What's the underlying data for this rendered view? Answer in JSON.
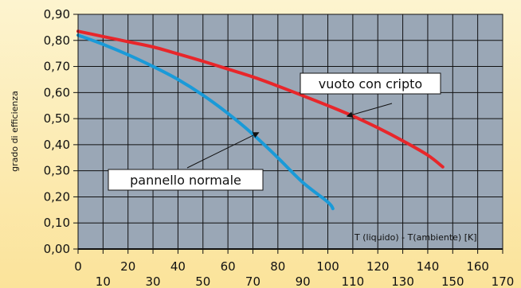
{
  "chart_data": {
    "type": "line",
    "title": "",
    "ylabel": "grado di efficienza",
    "xlabel": "T (liquido) - T(ambiente) [K]",
    "xlim": [
      0,
      170
    ],
    "ylim": [
      0.0,
      0.9
    ],
    "grid": true,
    "y_ticks": [
      "0,00",
      "0,10",
      "0,20",
      "0,30",
      "0,40",
      "0,50",
      "0,60",
      "0,70",
      "0,80",
      "0,90"
    ],
    "x_ticks_upper": [
      "0",
      "20",
      "40",
      "60",
      "80",
      "100",
      "120",
      "140",
      "160"
    ],
    "x_ticks_lower": [
      "10",
      "30",
      "50",
      "70",
      "90",
      "110",
      "130",
      "150",
      "170"
    ],
    "series": [
      {
        "name": "vuoto con cripto",
        "color": "#e8262a",
        "x": [
          0,
          10,
          20,
          30,
          40,
          50,
          60,
          70,
          80,
          90,
          100,
          110,
          120,
          130,
          140,
          146
        ],
        "y": [
          0.835,
          0.815,
          0.795,
          0.775,
          0.748,
          0.72,
          0.69,
          0.66,
          0.625,
          0.588,
          0.55,
          0.51,
          0.465,
          0.415,
          0.36,
          0.315
        ]
      },
      {
        "name": "pannello normale",
        "color": "#1a9ad8",
        "x": [
          0,
          10,
          20,
          30,
          40,
          50,
          60,
          70,
          80,
          90,
          100,
          102
        ],
        "y": [
          0.82,
          0.785,
          0.745,
          0.7,
          0.65,
          0.59,
          0.52,
          0.44,
          0.35,
          0.255,
          0.18,
          0.155
        ]
      }
    ],
    "annotations": [
      {
        "text": "vuoto con cripto",
        "target_x": 108,
        "target_y": 0.51
      },
      {
        "text": "pannello normale",
        "target_x": 72,
        "target_y": 0.445
      }
    ]
  }
}
